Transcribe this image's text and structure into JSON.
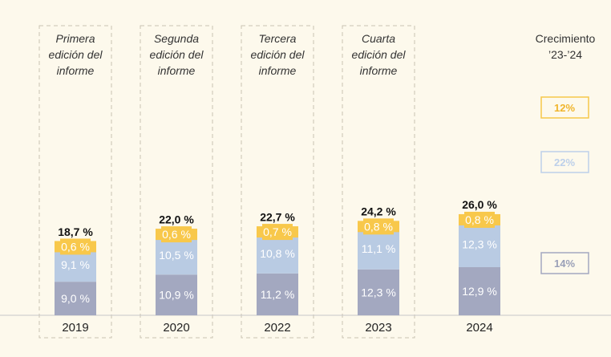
{
  "chart_data": {
    "type": "bar",
    "stacked": true,
    "categories": [
      "2019",
      "2020",
      "2022",
      "2023",
      "2024"
    ],
    "series": [
      {
        "values": [
          9.0,
          10.9,
          11.2,
          12.3,
          12.9
        ],
        "labels": [
          "9,0 %",
          "10,9 %",
          "11,2 %",
          "12,3 %",
          "12,9 %"
        ],
        "color": "#a3a8c0"
      },
      {
        "values": [
          9.1,
          10.5,
          10.8,
          11.1,
          12.3
        ],
        "labels": [
          "9,1 %",
          "10,5 %",
          "10,8 %",
          "11,1 %",
          "12,3 %"
        ],
        "color": "#b9cbe3"
      },
      {
        "values": [
          0.6,
          0.6,
          0.7,
          0.8,
          0.8
        ],
        "labels": [
          "0,6 %",
          "0,6 %",
          "0,7 %",
          "0,8 %",
          "0,8 %"
        ],
        "color": "#f8c84b"
      }
    ],
    "totals": [
      18.7,
      22.0,
      22.7,
      24.2,
      26.0
    ],
    "total_labels": [
      "18,7 %",
      "22,0 %",
      "22,7 %",
      "24,2 %",
      "26,0 %"
    ],
    "annotations": [
      [
        "Primera",
        "edición del",
        "informe"
      ],
      [
        "Segunda",
        "edición del",
        "informe"
      ],
      [
        "Tercera",
        "edición del",
        "informe"
      ],
      [
        "Cuarta",
        "edición del",
        "informe"
      ],
      null
    ],
    "growth": {
      "title": [
        "Crecimiento",
        "’23-’24"
      ],
      "values": [
        "12%",
        "22%",
        "14%"
      ],
      "text_colors": [
        "#f0b52c",
        "#bdd0ea",
        "#9aa0b8"
      ],
      "border_colors": [
        "#f7c74a",
        "#bdd0ea",
        "#a3a8c0"
      ]
    },
    "title": "",
    "xlabel": "",
    "ylabel": ""
  }
}
